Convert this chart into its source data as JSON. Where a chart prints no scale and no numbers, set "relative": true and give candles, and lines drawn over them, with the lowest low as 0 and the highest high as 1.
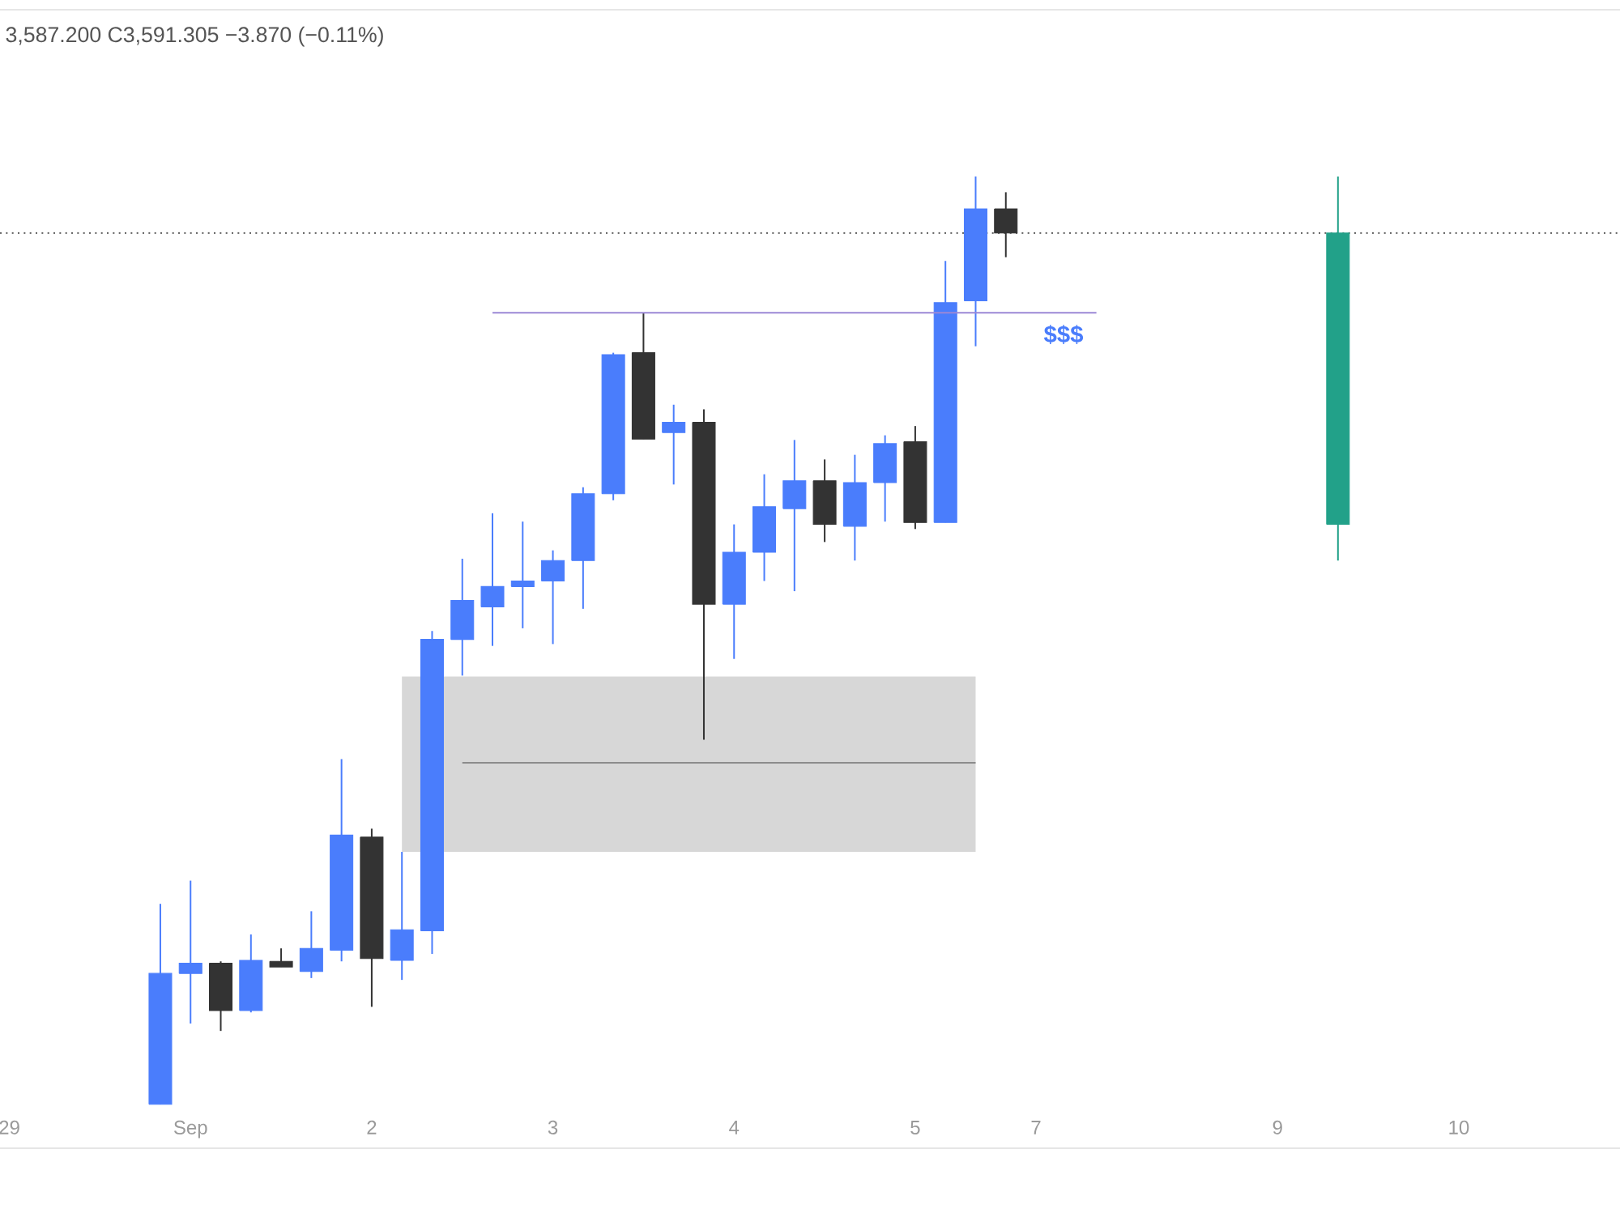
{
  "chart_data": {
    "type": "candlestick",
    "relative": true,
    "tick_labels": "x",
    "categories": [
      "29",
      null,
      null,
      null,
      null,
      null,
      "Sep",
      null,
      null,
      null,
      null,
      null,
      "2",
      null,
      null,
      null,
      null,
      null,
      "3",
      null,
      null,
      null,
      null,
      null,
      "4",
      null,
      null,
      null,
      null,
      null,
      "5",
      null,
      null,
      null,
      "7",
      null,
      null,
      null,
      null,
      null,
      null,
      null,
      "9",
      null,
      null,
      null,
      null,
      null,
      "10"
    ],
    "ohlc": [
      null,
      null,
      null,
      null,
      null,
      [
        0,
        0.216,
        0,
        0.141
      ],
      [
        0.141,
        0.241,
        0.087,
        0.152
      ],
      [
        0.152,
        0.154,
        0.079,
        0.101
      ],
      [
        0.101,
        0.183,
        0.099,
        0.155
      ],
      [
        0.154,
        0.168,
        0.148,
        0.148
      ],
      [
        0.143,
        0.208,
        0.136,
        0.168
      ],
      [
        0.166,
        0.372,
        0.154,
        0.29
      ],
      [
        0.288,
        0.297,
        0.105,
        0.157
      ],
      [
        0.155,
        0.272,
        0.134,
        0.188
      ],
      [
        0.187,
        0.51,
        0.162,
        0.501
      ],
      [
        0.501,
        0.588,
        0.462,
        0.543
      ],
      [
        0.536,
        0.637,
        0.494,
        0.558
      ],
      [
        0.558,
        0.628,
        0.513,
        0.564
      ],
      [
        0.564,
        0.597,
        0.496,
        0.586
      ],
      [
        0.586,
        0.665,
        0.534,
        0.658
      ],
      [
        0.658,
        0.81,
        0.651,
        0.808
      ],
      [
        0.81,
        0.853,
        0.717,
        0.717
      ],
      [
        0.724,
        0.754,
        0.668,
        0.735
      ],
      [
        0.735,
        0.749,
        0.393,
        0.539
      ],
      [
        0.539,
        0.625,
        0.48,
        0.595
      ],
      [
        0.595,
        0.679,
        0.564,
        0.644
      ],
      [
        0.642,
        0.716,
        0.553,
        0.672
      ],
      [
        0.672,
        0.695,
        0.606,
        0.625
      ],
      [
        0.623,
        0.7,
        0.586,
        0.67
      ],
      [
        0.67,
        0.721,
        0.628,
        0.712
      ],
      [
        0.714,
        0.731,
        0.62,
        0.627
      ],
      [
        0.627,
        0.909,
        0.627,
        0.864
      ],
      [
        0.866,
        1,
        0.817,
        0.965
      ],
      [
        0.965,
        0.983,
        0.913,
        0.939
      ],
      null,
      null,
      null,
      null,
      null,
      null,
      null,
      null,
      null,
      null,
      [
        0.625,
        1,
        0.586,
        0.939
      ],
      null,
      null,
      null,
      null
    ],
    "colors": [
      null,
      null,
      null,
      null,
      null,
      "#4a7dfc",
      "#4a7dfc",
      "#333333",
      "#4a7dfc",
      "#333333",
      "#4a7dfc",
      "#4a7dfc",
      "#333333",
      "#4a7dfc",
      "#4a7dfc",
      "#4a7dfc",
      "#4a7dfc",
      "#4a7dfc",
      "#4a7dfc",
      "#4a7dfc",
      "#4a7dfc",
      "#333333",
      "#4a7dfc",
      "#333333",
      "#4a7dfc",
      "#4a7dfc",
      "#4a7dfc",
      "#333333",
      "#4a7dfc",
      "#4a7dfc",
      "#333333",
      "#4a7dfc",
      "#4a7dfc",
      "#333333",
      null,
      null,
      null,
      null,
      null,
      null,
      null,
      null,
      null,
      null,
      "#22a189",
      null,
      null,
      null,
      null
    ],
    "series": [
      {
        "type": "line",
        "color": "#8c8c8c",
        "values": [
          null,
          null,
          null,
          null,
          null,
          null,
          null,
          null,
          null,
          null,
          null,
          null,
          null,
          null,
          null,
          0.368,
          0.368,
          0.368,
          0.368,
          0.368,
          0.368,
          0.368,
          0.368,
          0.368,
          0.368,
          0.368,
          0.368,
          0.368,
          0.368,
          0.368,
          0.368,
          0.368,
          0.368,
          null,
          null,
          null,
          null,
          null,
          null,
          null,
          null,
          null,
          null,
          null,
          null,
          null,
          null,
          null,
          null
        ],
        "lower": [
          null,
          null,
          null,
          null,
          null,
          null,
          null,
          null,
          null,
          null,
          null,
          null,
          null,
          0.272,
          0.272,
          0.272,
          0.272,
          0.272,
          0.272,
          0.272,
          0.272,
          0.272,
          0.272,
          0.272,
          0.272,
          0.272,
          0.272,
          0.272,
          0.272,
          0.272,
          0.272,
          0.272,
          0.272,
          null,
          null,
          null,
          null,
          null,
          null,
          null,
          null,
          null,
          null,
          null,
          null,
          null,
          null,
          null,
          null
        ],
        "upper": [
          null,
          null,
          null,
          null,
          null,
          null,
          null,
          null,
          null,
          null,
          null,
          null,
          null,
          0.461,
          0.461,
          0.461,
          0.461,
          0.461,
          0.461,
          0.461,
          0.461,
          0.461,
          0.461,
          0.461,
          0.461,
          0.461,
          0.461,
          0.461,
          0.461,
          0.461,
          0.461,
          0.461,
          0.461,
          null,
          null,
          null,
          null,
          null,
          null,
          null,
          null,
          null,
          null,
          null,
          null,
          null,
          null,
          null,
          null
        ]
      },
      {
        "type": "line",
        "name": "$$$",
        "color": "#9b88d6",
        "values": [
          null,
          null,
          null,
          null,
          null,
          null,
          null,
          null,
          null,
          null,
          null,
          null,
          null,
          null,
          null,
          null,
          0.853,
          0.853,
          0.853,
          0.853,
          0.853,
          0.853,
          0.853,
          0.853,
          0.853,
          0.853,
          0.853,
          0.853,
          0.853,
          0.853,
          0.853,
          0.853,
          0.853,
          0.853,
          0.853,
          0.853,
          0.853,
          null,
          null,
          null,
          null,
          null,
          null,
          null,
          null,
          null,
          null,
          null,
          null
        ]
      }
    ],
    "ref_lines": [
      {
        "axis": "y",
        "value": 0.939,
        "color": "#4d4d4d",
        "line_style": "dotted"
      }
    ],
    "annotations": [
      "3,587.200 C3,591.305 −3.870 (−0.11%)"
    ]
  }
}
